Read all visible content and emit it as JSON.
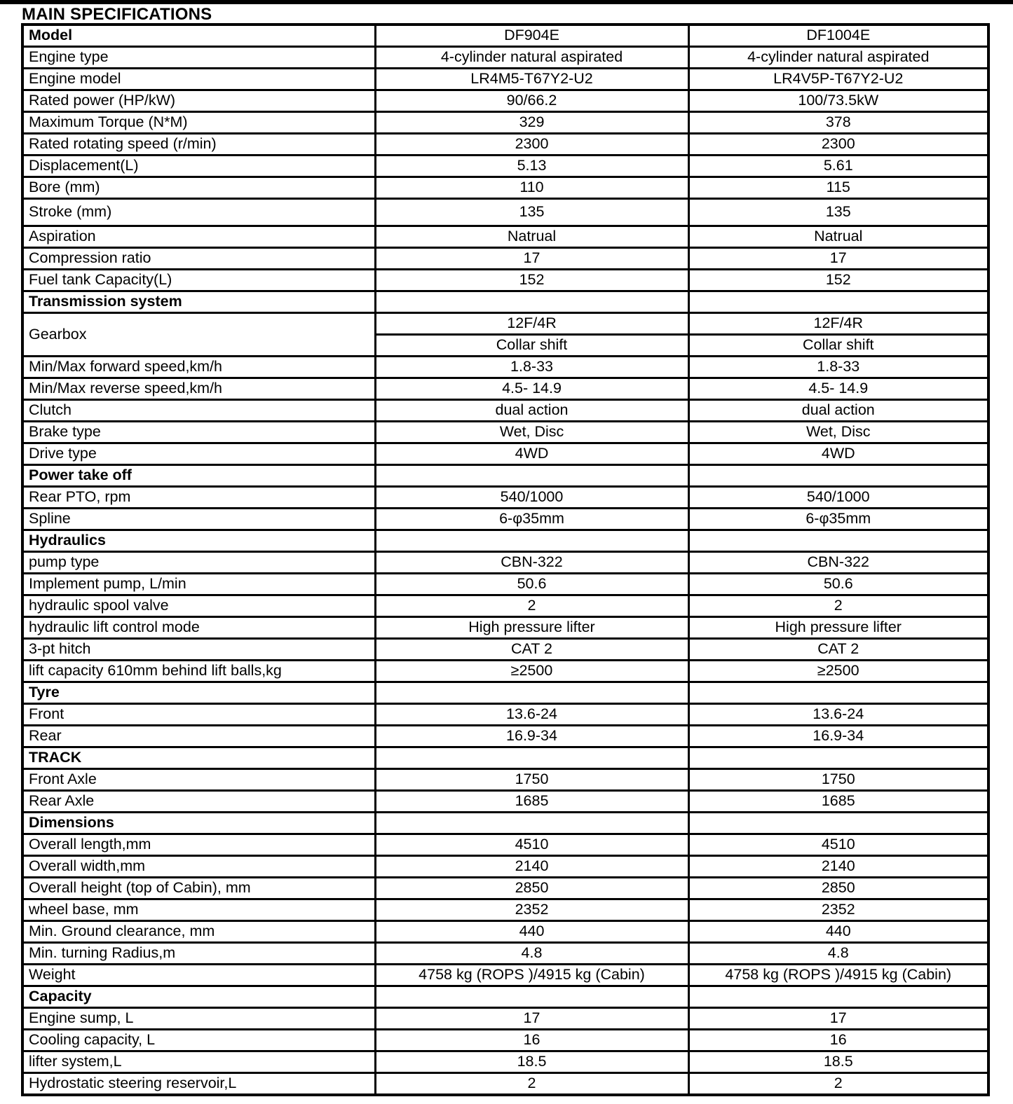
{
  "page": {
    "title": "MAIN SPECIFICATIONS"
  },
  "table": {
    "rows": [
      {
        "type": "header",
        "label": "Model",
        "values": [
          "DF904E",
          "DF1004E"
        ]
      },
      {
        "type": "data",
        "label": "Engine type",
        "values": [
          "4-cylinder natural aspirated",
          "4-cylinder natural aspirated"
        ]
      },
      {
        "type": "data",
        "label": "Engine model",
        "values": [
          "LR4M5-T67Y2-U2",
          "LR4V5P-T67Y2-U2"
        ]
      },
      {
        "type": "data",
        "label": "Rated power  (HP/kW)",
        "values": [
          "90/66.2",
          "100/73.5kW"
        ]
      },
      {
        "type": "data",
        "label": "Maximum Torque  (N*M)",
        "values": [
          "329",
          "378"
        ]
      },
      {
        "type": "data",
        "label": "Rated rotating speed (r/min)",
        "values": [
          "2300",
          "2300"
        ]
      },
      {
        "type": "data",
        "label": "Displacement(L)",
        "values": [
          "5.13",
          "5.61"
        ]
      },
      {
        "type": "data",
        "label": "Bore   (mm)",
        "values": [
          "110",
          "115"
        ]
      },
      {
        "type": "data",
        "label": "Stroke   (mm)",
        "values": [
          "135",
          "135"
        ],
        "tall": true
      },
      {
        "type": "data",
        "label": "Aspiration",
        "values": [
          "Natrual",
          "Natrual"
        ]
      },
      {
        "type": "data",
        "label": "Compression ratio",
        "values": [
          "17",
          "17"
        ]
      },
      {
        "type": "data",
        "label": "Fuel tank Capacity(L)",
        "values": [
          "152",
          "152"
        ]
      },
      {
        "type": "section",
        "label": "Transmission system",
        "values": [
          "",
          ""
        ]
      },
      {
        "type": "double",
        "label": "Gearbox",
        "values": [
          [
            "12F/4R",
            "Collar shift"
          ],
          [
            "12F/4R",
            "Collar shift"
          ]
        ]
      },
      {
        "type": "data",
        "label": "Min/Max forward speed,km/h",
        "values": [
          "1.8-33",
          "1.8-33"
        ]
      },
      {
        "type": "data",
        "label": "Min/Max reverse speed,km/h",
        "values": [
          "4.5- 14.9",
          "4.5- 14.9"
        ]
      },
      {
        "type": "data",
        "label": "Clutch",
        "values": [
          "dual action",
          "dual action"
        ]
      },
      {
        "type": "data",
        "label": "Brake type",
        "values": [
          "Wet, Disc",
          "Wet, Disc"
        ]
      },
      {
        "type": "data",
        "label": "Drive type",
        "values": [
          "4WD",
          "4WD"
        ]
      },
      {
        "type": "section",
        "label": "Power take off",
        "values": [
          "",
          ""
        ]
      },
      {
        "type": "data",
        "label": "Rear PTO, rpm",
        "values": [
          "540/1000",
          "540/1000"
        ]
      },
      {
        "type": "data",
        "label": "Spline",
        "values": [
          "6-φ35mm",
          "6-φ35mm"
        ]
      },
      {
        "type": "section",
        "label": "Hydraulics",
        "values": [
          "",
          ""
        ]
      },
      {
        "type": "data",
        "label": "pump type",
        "values": [
          "CBN-322",
          "CBN-322"
        ]
      },
      {
        "type": "data",
        "label": "Implement pump, L/min",
        "values": [
          "50.6",
          "50.6"
        ]
      },
      {
        "type": "data",
        "label": "hydraulic spool valve",
        "values": [
          "2",
          "2"
        ]
      },
      {
        "type": "data",
        "label": "hydraulic lift control mode",
        "values": [
          "High pressure lifter",
          "High pressure lifter"
        ]
      },
      {
        "type": "data",
        "label": "3-pt hitch",
        "values": [
          "CAT 2",
          "CAT 2"
        ]
      },
      {
        "type": "data",
        "label": "lift capacity 610mm behind lift balls,kg",
        "values": [
          "≥2500",
          "≥2500"
        ]
      },
      {
        "type": "section",
        "label": "Tyre",
        "values": [
          "",
          ""
        ]
      },
      {
        "type": "data",
        "label": "Front",
        "values": [
          "13.6-24",
          "13.6-24"
        ]
      },
      {
        "type": "data",
        "label": "Rear",
        "values": [
          "16.9-34",
          "16.9-34"
        ]
      },
      {
        "type": "section",
        "label": "TRACK",
        "values": [
          "",
          ""
        ]
      },
      {
        "type": "data",
        "label": "Front Axle",
        "values": [
          "1750",
          "1750"
        ]
      },
      {
        "type": "data",
        "label": "Rear Axle",
        "values": [
          "1685",
          "1685"
        ]
      },
      {
        "type": "section",
        "label": "Dimensions",
        "values": [
          "",
          ""
        ]
      },
      {
        "type": "data",
        "label": "Overall length,mm",
        "values": [
          "4510",
          "4510"
        ]
      },
      {
        "type": "data",
        "label": "Overall width,mm",
        "values": [
          "2140",
          "2140"
        ]
      },
      {
        "type": "data",
        "label": "Overall height (top of Cabin), mm",
        "values": [
          "2850",
          "2850"
        ]
      },
      {
        "type": "data",
        "label": "wheel base, mm",
        "values": [
          "2352",
          "2352"
        ]
      },
      {
        "type": "data",
        "label": "Min. Ground clearance, mm",
        "values": [
          "440",
          "440"
        ]
      },
      {
        "type": "data",
        "label": "Min. turning Radius,m",
        "values": [
          "4.8",
          "4.8"
        ]
      },
      {
        "type": "data",
        "label": "Weight",
        "values": [
          "4758 kg (ROPS )/4915 kg (Cabin)",
          "4758 kg (ROPS )/4915 kg (Cabin)"
        ]
      },
      {
        "type": "section",
        "label": "Capacity",
        "values": [
          "",
          ""
        ]
      },
      {
        "type": "data",
        "label": "Engine sump,   L",
        "values": [
          "17",
          "17"
        ]
      },
      {
        "type": "data",
        "label": "Cooling capacity, L",
        "values": [
          "16",
          "16"
        ]
      },
      {
        "type": "data",
        "label": "lifter  system,L",
        "values": [
          "18.5",
          "18.5"
        ]
      },
      {
        "type": "data",
        "label": "Hydrostatic steering reservoir,L",
        "values": [
          "2",
          "2"
        ]
      }
    ]
  }
}
